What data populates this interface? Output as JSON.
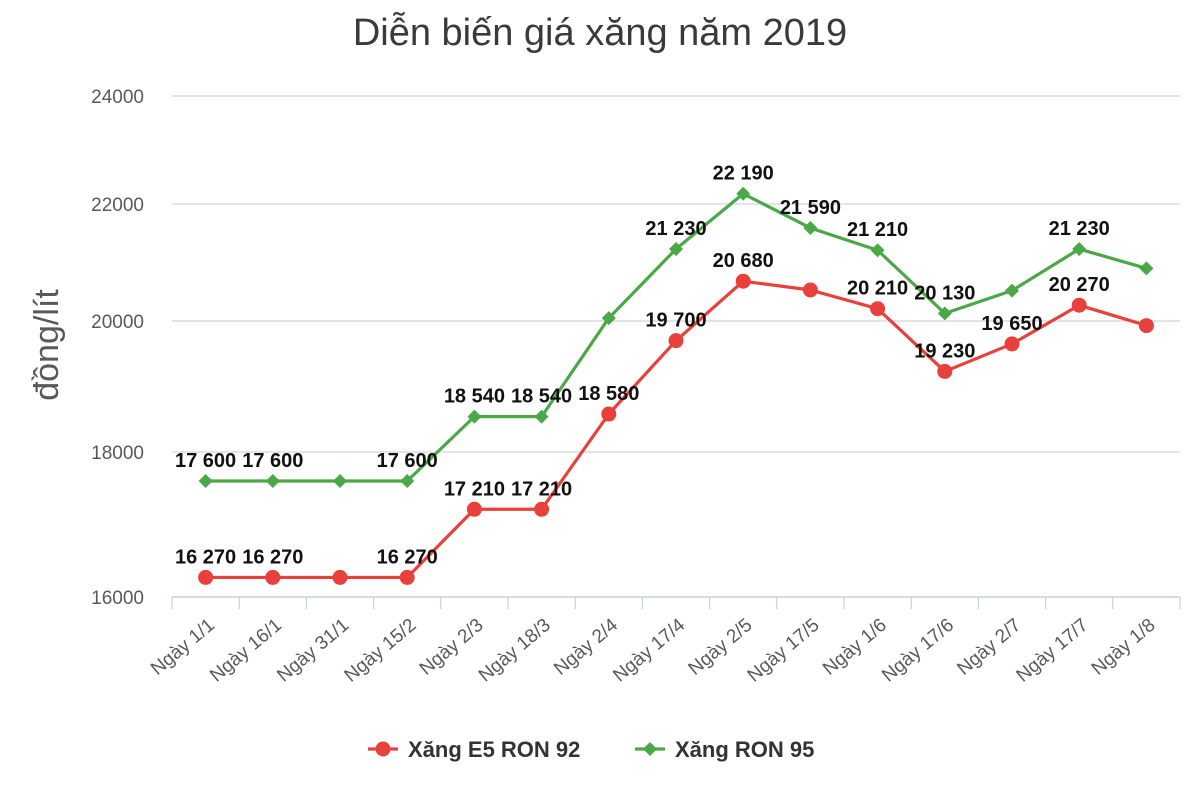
{
  "chart_data": {
    "type": "line",
    "title": "Diễn biến giá xăng năm 2019",
    "xlabel": "",
    "ylabel": "đồng/lít",
    "ylim": [
      16000,
      24000
    ],
    "yticks": [
      16000,
      18000,
      20000,
      22000,
      24000
    ],
    "ytick_labels": [
      "16000",
      "18000",
      "20000",
      "22000",
      "24000"
    ],
    "categories": [
      "Ngày 1/1",
      "Ngày 16/1",
      "Ngày 31/1",
      "Ngày 15/2",
      "Ngày 2/3",
      "Ngày 18/3",
      "Ngày 2/4",
      "Ngày 17/4",
      "Ngày 2/5",
      "Ngày 17/5",
      "Ngày 1/6",
      "Ngày 17/6",
      "Ngày 2/7",
      "Ngày 17/7",
      "Ngày 1/8"
    ],
    "grid": true,
    "legend_position": "bottom",
    "series": [
      {
        "name": "Xăng E5 RON 92",
        "color": "#e8413c",
        "marker": "circle",
        "values": [
          16270,
          16270,
          16270,
          16270,
          17210,
          17210,
          18580,
          19700,
          20680,
          20530,
          20210,
          19230,
          19650,
          20270,
          19930
        ],
        "labels": [
          "16 270",
          "16 270",
          "",
          "16 270",
          "17 210",
          "17 210",
          "18 580",
          "19 700",
          "20 680",
          "",
          "20 210",
          "19 230",
          "19 650",
          "20 270",
          ""
        ]
      },
      {
        "name": "Xăng RON 95",
        "color": "#4aa846",
        "marker": "diamond",
        "values": [
          17600,
          17600,
          17600,
          17600,
          18540,
          18540,
          20050,
          21230,
          22190,
          21590,
          21210,
          20130,
          20520,
          21230,
          20900
        ],
        "labels": [
          "17 600",
          "17 600",
          "",
          "17 600",
          "18 540",
          "18 540",
          "",
          "21 230",
          "22 190",
          "21 590",
          "21 210",
          "20 130",
          "",
          "21 230",
          ""
        ]
      }
    ]
  }
}
